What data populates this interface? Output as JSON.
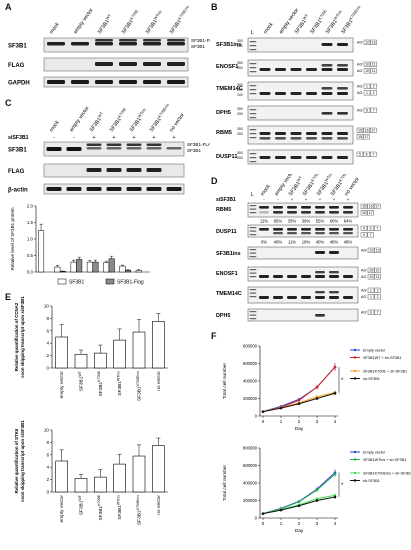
{
  "panels": {
    "A": {
      "letter": "A",
      "lanes": [
        "mock",
        "empty vector",
        "SF3B1WT",
        "SF3B1K700E",
        "SF3B1WTins",
        "SF3B1K700Eins"
      ],
      "rows": [
        "SF3B1",
        "FLAG",
        "GAPDH"
      ],
      "arrow_labels": [
        "SF3B1-FLAG",
        "SF3B1"
      ]
    },
    "B": {
      "letter": "B",
      "lanes": [
        "mock",
        "empty vector",
        "SF3B1WT",
        "SF3B1K700E",
        "SF3B1WTins",
        "SF3B1K700Eins"
      ],
      "ladder": "L",
      "genes": [
        {
          "name": "SF3B1ins",
          "sizes": [
            "300",
            "200"
          ],
          "iso": [
            [
              "AG'",
              "12",
              "13"
            ]
          ]
        },
        {
          "name": "ENOSF1",
          "sizes": [
            "300",
            "200"
          ],
          "iso": [
            [
              "AG'",
              "10",
              "11"
            ],
            [
              "AG",
              "10",
              "11"
            ]
          ]
        },
        {
          "name": "TMEM14C",
          "sizes": [
            "300",
            "200",
            "100"
          ],
          "iso": [
            [
              "AG'",
              "1",
              "2"
            ],
            [
              "AG",
              "1",
              "2"
            ]
          ]
        },
        {
          "name": "DPH5",
          "sizes": [
            "300",
            "200"
          ],
          "iso": [
            [
              "AG'",
              "6",
              "7"
            ]
          ]
        },
        {
          "name": "RBM5",
          "sizes": [
            "300",
            "200"
          ],
          "iso": [
            [
              "",
              "15",
              "16",
              "17"
            ],
            [
              "",
              "15",
              "17"
            ]
          ]
        },
        {
          "name": "DUSP11",
          "sizes": [
            "300",
            "200"
          ],
          "iso": [
            [
              "",
              "5",
              "6",
              "7"
            ]
          ]
        }
      ]
    },
    "C": {
      "letter": "C",
      "sirow_label": "siSF3B1",
      "sirow_marks": [
        "-",
        "-",
        "+",
        "+",
        "+",
        "+",
        "+"
      ],
      "lanes": [
        "mock",
        "empty vector",
        "SF3B1WT",
        "SF3B1K700E",
        "SF3B1WTins",
        "SF3B1K700Eins",
        "no vector"
      ],
      "rows": [
        "SF3B1",
        "FLAG",
        "β-actin"
      ],
      "arrow_labels": [
        "SF3B1-FLAG",
        "SF3B1"
      ]
    },
    "D": {
      "letter": "D",
      "sirow_label": "siSF3B1",
      "sirow_marks": [
        "-",
        "-",
        "+",
        "+",
        "+",
        "+",
        "+"
      ],
      "lanes": [
        "mock",
        "empty vector",
        "SF3B1WT",
        "SF3B1K700E",
        "SF3B1WTins",
        "SF3B1K700Eins",
        "no vector"
      ],
      "ladder": "L",
      "genes": [
        {
          "name": "RBM5",
          "iso": [
            [
              "",
              "15",
              "16",
              "17"
            ],
            [
              "",
              "15",
              "17"
            ]
          ]
        },
        {
          "name": "DUSP11",
          "iso": [
            [
              "",
              "5",
              "6",
              "7"
            ],
            [
              "",
              "5",
              "7"
            ]
          ]
        },
        {
          "name": "SF3B1ins",
          "iso": [
            [
              "AG'",
              "12",
              "13"
            ]
          ]
        },
        {
          "name": "ENOSF1",
          "iso": [
            [
              "AG'",
              "10",
              "11"
            ],
            [
              "AG",
              "10",
              "11"
            ]
          ]
        },
        {
          "name": "TMEM14C",
          "iso": [
            [
              "AG'",
              "1",
              "2"
            ],
            [
              "AG",
              "1",
              "2"
            ]
          ]
        },
        {
          "name": "DPH5",
          "iso": [
            [
              "AG'",
              "6",
              "7"
            ]
          ]
        }
      ],
      "pct_rbm5": [
        "11%",
        "65%",
        "35%",
        "39%",
        "55%",
        "60%",
        "64%"
      ],
      "pct_dusp11": [
        "0%",
        "49%",
        "11%",
        "18%",
        "40%",
        "48%",
        "48%"
      ]
    },
    "E": {
      "letter": "E"
    },
    "F": {
      "letter": "F"
    }
  },
  "chart_data": [
    {
      "type": "bar",
      "panel": "C",
      "categories": [
        "mock",
        "empty vector",
        "SF3B1WT",
        "SF3B1K700E",
        "SF3B1WTins",
        "SF3B1K700Eins",
        "no vector"
      ],
      "series": [
        {
          "name": "SF3B1",
          "values": [
            1.25,
            0.15,
            0.3,
            0.3,
            0.28,
            0.18,
            0.05
          ],
          "errors": [
            0.2,
            0.05,
            0.06,
            0.05,
            0.05,
            0.03,
            0.02
          ]
        },
        {
          "name": "SF3B1-Flag",
          "values": [
            0.0,
            0.02,
            0.38,
            0.3,
            0.4,
            0.05,
            0.0
          ],
          "errors": [
            0,
            0.01,
            0.07,
            0.06,
            0.08,
            0.02,
            0
          ]
        }
      ],
      "ylabel": "Relative level of SF3B1 protein",
      "yticks": [
        "0.0",
        "0.5",
        "1.0",
        "1.5",
        "2.0"
      ],
      "ylim": [
        0,
        2.0
      ],
      "legend": [
        "SF3B1",
        "SF3B1-Flag"
      ],
      "legend_position": "bottom"
    },
    {
      "type": "bar",
      "panel": "E-top",
      "categories": [
        "empty vector",
        "SF3B1WT",
        "SF3B1K700E",
        "SF3B1WTins",
        "SF3B1K700Eins",
        "no vector"
      ],
      "values": [
        5.0,
        2.2,
        2.4,
        4.5,
        5.8,
        7.5
      ],
      "errors": [
        2.0,
        0.7,
        1.3,
        1.8,
        2.0,
        1.3
      ],
      "ylabel": "Relative quantification of CCNA2 exon skipping transcript upon siSF3B1",
      "yticks": [
        "0",
        "2",
        "4",
        "6",
        "8",
        "10"
      ],
      "ylim": [
        0,
        10
      ]
    },
    {
      "type": "bar",
      "panel": "E-bottom",
      "categories": [
        "empty vector",
        "SF3B1WT",
        "SF3B1K700E",
        "SF3B1WTins",
        "SF3B1K700Eins",
        "no vector"
      ],
      "values": [
        5.0,
        2.2,
        2.4,
        4.5,
        5.8,
        7.5
      ],
      "errors": [
        1.8,
        0.6,
        1.2,
        1.6,
        1.8,
        1.2
      ],
      "ylabel": "Relative quantification of STK6 exon skipping transcript upon siSF3B1",
      "yticks": [
        "0",
        "2",
        "4",
        "6",
        "8",
        "10"
      ],
      "ylim": [
        0,
        10
      ]
    },
    {
      "type": "line",
      "panel": "F-top",
      "x": [
        0,
        1,
        2,
        3,
        4
      ],
      "xticks": [
        "0",
        "1",
        "2",
        "3",
        "4"
      ],
      "xlabel": "Day",
      "ylabel": "Total cell number",
      "yticks": [
        "0",
        "200000",
        "400000",
        "600000",
        "800000"
      ],
      "ylim": [
        0,
        800000
      ],
      "series": [
        {
          "name": "Empty vector",
          "color": "#2b3fd9",
          "values": [
            50000,
            110000,
            190000,
            330000,
            560000
          ]
        },
        {
          "name": "SF3B1WT + sh-SF3B1",
          "color": "#d62828",
          "values": [
            50000,
            100000,
            180000,
            330000,
            560000
          ]
        },
        {
          "name": "SF3B1K700E + sh-SF3B1",
          "color": "#f4a12a",
          "values": [
            50000,
            95000,
            150000,
            220000,
            270000
          ]
        },
        {
          "name": "sh-SF3B1",
          "color": "#111111",
          "values": [
            50000,
            90000,
            140000,
            200000,
            260000
          ]
        }
      ],
      "legend_position": "right",
      "annotations": [
        "*"
      ]
    },
    {
      "type": "line",
      "panel": "F-bottom",
      "x": [
        0,
        1,
        2,
        3,
        4
      ],
      "xticks": [
        "0",
        "1",
        "2",
        "3",
        "4"
      ],
      "xlabel": "Day",
      "ylabel": "Total cell number",
      "yticks": [
        "0",
        "200000",
        "400000",
        "600000",
        "800000"
      ],
      "ylim": [
        0,
        800000
      ],
      "series": [
        {
          "name": "Empty vector",
          "color": "#2b3fd9",
          "values": [
            50000,
            110000,
            190000,
            330000,
            520000
          ]
        },
        {
          "name": "SF3B1WTins + sh-SF3B1",
          "color": "#2bb44a",
          "values": [
            50000,
            105000,
            185000,
            320000,
            500000
          ]
        },
        {
          "name": "SF3B1K700Eins + sh-SF3B1",
          "color": "#44dd55",
          "values": [
            50000,
            95000,
            150000,
            220000,
            260000
          ]
        },
        {
          "name": "sh-SF3B1",
          "color": "#111111",
          "values": [
            50000,
            90000,
            140000,
            200000,
            240000
          ]
        }
      ],
      "legend_position": "right",
      "annotations": [
        "*"
      ]
    }
  ]
}
